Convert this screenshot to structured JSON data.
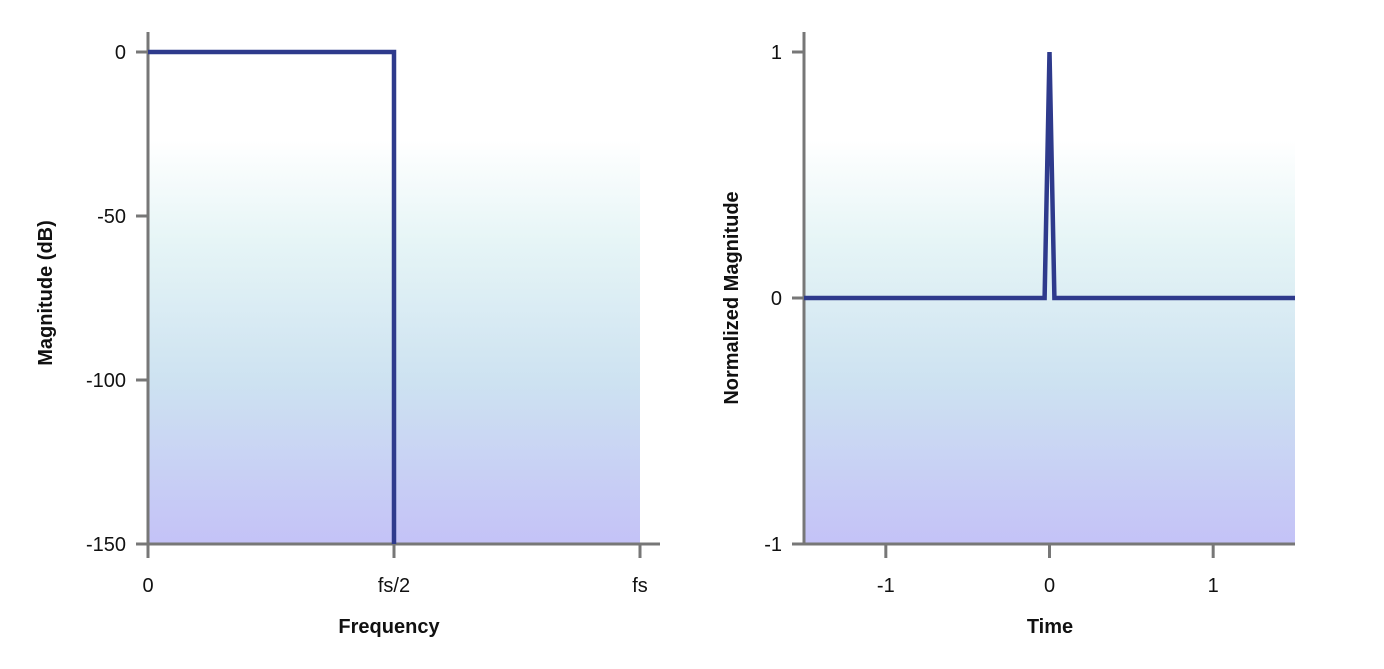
{
  "chart_data": [
    {
      "type": "line",
      "title": "",
      "xlabel": "Frequency",
      "ylabel": "Magnitude (dB)",
      "x_categories": [
        "0",
        "fs/2",
        "fs"
      ],
      "x": [
        0,
        0.5,
        0.5
      ],
      "y": [
        0,
        0,
        -150
      ],
      "xlim": [
        0,
        1
      ],
      "ylim": [
        -150,
        0
      ],
      "yticks": [
        0,
        -50,
        -100,
        -150
      ],
      "ytick_labels": [
        "0",
        "-50",
        "-100",
        "-150"
      ],
      "xticks": [
        0,
        0.5,
        1
      ],
      "xtick_labels": [
        "0",
        "fs/2",
        "fs"
      ],
      "grid": false,
      "line_color": "#2e3a8c",
      "background_gradient": [
        "#ffffff",
        "#c4c2f7"
      ]
    },
    {
      "type": "line",
      "title": "",
      "xlabel": "Time",
      "ylabel": "Normalized Magnitude",
      "x": [
        -1.5,
        -0.03,
        0,
        0.03,
        1.5
      ],
      "y": [
        0,
        0,
        1,
        0,
        0
      ],
      "xlim": [
        -1.5,
        1.5
      ],
      "ylim": [
        -1,
        1
      ],
      "yticks": [
        1,
        0,
        -1
      ],
      "ytick_labels": [
        "1",
        "0",
        "-1"
      ],
      "xticks": [
        -1,
        0,
        1
      ],
      "xtick_labels": [
        "-1",
        "0",
        "1"
      ],
      "grid": false,
      "line_color": "#2e3a8c",
      "background_gradient": [
        "#ffffff",
        "#c4c2f7"
      ]
    }
  ]
}
